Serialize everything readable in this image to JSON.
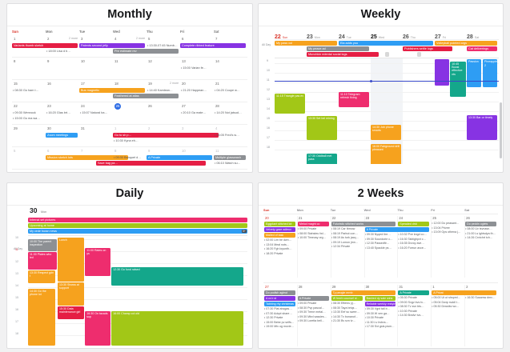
{
  "palette": {
    "red": "#e51e44",
    "pink": "#ee2d6e",
    "orange": "#f6a21e",
    "purple": "#8733e3",
    "blue": "#2e9df4",
    "lime": "#a2c717",
    "teal": "#14a78b",
    "gray": "#8d9094",
    "lightgray": "#d8d8d8",
    "navy": "#3748c9",
    "today": "#2d6ce5",
    "sun": "#d93025"
  },
  "monthly": {
    "title": "Monthly",
    "dow": [
      "Sun",
      "Mon",
      "Tue",
      "Wed",
      "Thu",
      "Fri",
      "Sat"
    ],
    "weeks": [
      {
        "days": [
          "1",
          "2",
          "3",
          "4",
          "5",
          "6",
          "7"
        ],
        "more": [
          {
            "col": 1,
            "s": "2 more"
          },
          {
            "col": 3,
            "s": "2 more"
          }
        ],
        "bars": [
          {
            "col": 0,
            "span": 2,
            "lane": 0,
            "color": "red",
            "label": "Variants thumb sketch"
          },
          {
            "col": 2,
            "span": 2,
            "lane": 0,
            "color": "purple",
            "label": "Patents second jelly"
          },
          {
            "col": 5,
            "span": 2,
            "lane": 0,
            "color": "purple",
            "label": "Complete ribbed feature"
          },
          {
            "col": 3,
            "span": 2,
            "lane": 1,
            "color": "gray",
            "label": "Pre estimate rev"
          }
        ],
        "texts": [
          {
            "col": 4,
            "lane": 0,
            "s": "• 13:30-07:45 Numb…"
          },
          {
            "col": 1,
            "lane": 1,
            "s": "• 18:00 Lisa d b…"
          }
        ]
      },
      {
        "days": [
          "8",
          "9",
          "10",
          "11",
          "12",
          "13",
          "14"
        ],
        "texts": [
          {
            "col": 5,
            "lane": 0,
            "s": "• 15:00 Varian fe…"
          }
        ]
      },
      {
        "days": [
          "15",
          "16",
          "17",
          "18",
          "19",
          "20",
          "21"
        ],
        "more": [
          {
            "col": 4,
            "s": "2 more"
          }
        ],
        "bars": [
          {
            "col": 2,
            "span": 2,
            "lane": 0,
            "color": "orange",
            "label": "Bus magnetic"
          },
          {
            "col": 3,
            "span": 2,
            "lane": 1,
            "color": "gray",
            "label": "Feathered at atlas"
          }
        ],
        "texts": [
          {
            "col": 0,
            "lane": 0,
            "s": "• 08:30 Go ham t…"
          },
          {
            "col": 4,
            "lane": 0,
            "s": "• 14:40 Kamlean…"
          },
          {
            "col": 5,
            "lane": 0,
            "s": "• 21:20 Happean…"
          },
          {
            "col": 6,
            "lane": 0,
            "s": "• 04:20 Coupe w…"
          }
        ]
      },
      {
        "days": [
          "22",
          "23",
          "24",
          "25",
          "26",
          "27",
          "28"
        ],
        "today": "25",
        "texts": [
          {
            "col": 0,
            "lane": 0,
            "s": "• 09:30 Wennock"
          },
          {
            "col": 0,
            "lane": 1,
            "s": "• 15:00 Go ma wa…"
          },
          {
            "col": 1,
            "lane": 0,
            "s": "• 16:20 Glas brt…"
          },
          {
            "col": 2,
            "lane": 0,
            "s": "• 15:07 Natural ba…"
          },
          {
            "col": 5,
            "lane": 0,
            "s": "• 20:10 Ga mate…"
          },
          {
            "col": 6,
            "lane": 0,
            "s": "• 14:20 Not jatsud…"
          }
        ]
      },
      {
        "days": [
          "29",
          "30",
          "31",
          "1",
          "2",
          "3",
          "4"
        ],
        "mutedFrom": 3,
        "bars": [
          {
            "col": 1,
            "span": 1,
            "lane": 0,
            "color": "blue",
            "label": "Zoom meetings"
          },
          {
            "col": 3,
            "span": 3.2,
            "lane": 0,
            "color": "red",
            "label": "Go to sh p…"
          }
        ],
        "texts": [
          {
            "col": 3,
            "lane": 1,
            "s": "• 10:30 Kyna eh…"
          },
          {
            "col": 6,
            "lane": 0,
            "s": "• 06:05 Fred's w…"
          }
        ]
      },
      {
        "days": [
          "5",
          "6",
          "7",
          "8",
          "9",
          "10",
          "11"
        ],
        "mutedFrom": 0,
        "bars": [
          {
            "col": 1,
            "span": 2.5,
            "lane": 0,
            "color": "orange",
            "label": "Mission sketch lots"
          },
          {
            "col": 4,
            "span": 2,
            "lane": 0,
            "color": "blue",
            "label": "A Private"
          },
          {
            "col": 6,
            "span": 1,
            "lane": 0,
            "color": "gray",
            "label": "Multiple glasswash"
          },
          {
            "col": 2.5,
            "span": 3.3,
            "lane": 1,
            "color": "red",
            "label": "Save bag pa…"
          }
        ],
        "texts": [
          {
            "col": 3,
            "lane": 0,
            "s": "• 09:30 Banquet d…"
          },
          {
            "col": 6,
            "lane": 1,
            "s": "• 06:10 Watch su…"
          }
        ]
      }
    ]
  },
  "weekly": {
    "title": "Weekly",
    "days": [
      {
        "n": "22",
        "name": "Sun",
        "cls": "sun"
      },
      {
        "n": "23",
        "name": "Mon",
        "cls": ""
      },
      {
        "n": "24",
        "name": "Tue",
        "cls": ""
      },
      {
        "n": "25",
        "name": "Wed",
        "cls": "tdy"
      },
      {
        "n": "26",
        "name": "Thu",
        "cls": ""
      },
      {
        "n": "27",
        "name": "Fri",
        "cls": ""
      },
      {
        "n": "28",
        "name": "Sat",
        "cls": ""
      }
    ],
    "allday_label": "All Day",
    "allday": [
      {
        "lane": 0,
        "col": 0,
        "span": 2,
        "color": "orange",
        "label": "My pass col"
      },
      {
        "lane": 0,
        "col": 2,
        "span": 3,
        "color": "blue",
        "label": "Ela adds you"
      },
      {
        "lane": 0,
        "col": 5,
        "span": 2,
        "color": "orange",
        "label": "Volleyball pointed args"
      },
      {
        "lane": 1,
        "col": 1,
        "span": 2,
        "color": "gray",
        "label": "My peace ad"
      },
      {
        "lane": 1,
        "col": 4,
        "span": 1.6,
        "color": "red",
        "label": "Publishers settle logs"
      },
      {
        "lane": 1,
        "col": 6,
        "span": 1,
        "color": "pink",
        "label": "Cat deliverings"
      },
      {
        "lane": 2,
        "col": 1,
        "span": 2.3,
        "color": "red",
        "label": "Munchkin edental social logs"
      },
      {
        "lane": 2,
        "col": 3.45,
        "span": 0.18,
        "color": "lightgray",
        "label": ""
      },
      {
        "lane": 2,
        "col": 4.45,
        "span": 0.18,
        "color": "lightgray",
        "label": ""
      }
    ],
    "times": [
      "9",
      "10",
      "11",
      "12",
      "13",
      "14",
      "15",
      "16",
      "17",
      "18"
    ],
    "todayCol": 3,
    "now": {
      "y": 28,
      "col": 3
    },
    "events": [
      {
        "col": 0,
        "start": 3.2,
        "len": 2.1,
        "color": "lime",
        "label": "11:15 Triangle pas ev"
      },
      {
        "col": 1,
        "start": 5.5,
        "len": 2.6,
        "color": "lime",
        "label": "13:30 Set bel mining"
      },
      {
        "col": 1,
        "start": 9.4,
        "len": 2.1,
        "color": "teal",
        "label": "17:30 Oddball met pass"
      },
      {
        "col": 2,
        "start": 3.0,
        "len": 1.7,
        "color": "pink",
        "label": "11:10 Telegram refresh fixing"
      },
      {
        "col": 3,
        "start": 6.4,
        "len": 1.7,
        "color": "orange",
        "label": "14:30 Job phone smarts"
      },
      {
        "col": 3,
        "start": 8.4,
        "len": 3.4,
        "color": "orange",
        "label": "16:00 Fairground drill pleasant"
      },
      {
        "col": 5,
        "start": -0.4,
        "len": 2.8,
        "w": 0.46,
        "dx": 0,
        "color": "purple",
        "label": ""
      },
      {
        "col": 5,
        "start": -0.2,
        "len": 3.8,
        "w": 0.5,
        "dx": 0.48,
        "color": "teal",
        "label": "10:45 Boost effective nts"
      },
      {
        "col": 6,
        "start": -0.4,
        "len": 3.0,
        "w": 0.46,
        "dx": 0,
        "color": "blue",
        "label": "Passion"
      },
      {
        "col": 6,
        "start": -0.4,
        "len": 3.0,
        "w": 0.46,
        "dx": 0.5,
        "color": "blue",
        "label": "Pineapple 2"
      },
      {
        "col": 6,
        "start": 5.4,
        "len": 2.7,
        "w": 0.94,
        "dx": 0,
        "color": "purple",
        "label": "13:30 Bar or timely"
      }
    ]
  },
  "daily": {
    "title": "Daily",
    "date": "30",
    "dayname": "Mon",
    "allday_label": "All Day",
    "allday": [
      {
        "color": "pink",
        "label": "Internal set pictures"
      },
      {
        "color": "lime",
        "label": "Upcoming at home"
      },
      {
        "color": "blue",
        "label": "My cede buran news",
        "badge": "5+"
      }
    ],
    "times": [
      "10",
      "11",
      "12",
      "13",
      "14",
      "15",
      "16",
      "17",
      "18"
    ],
    "currentIdx": 1,
    "events": [
      {
        "l": 0,
        "w": 13,
        "start": 0,
        "len": 1.05,
        "color": "gray",
        "label": "10:00 The parent inspection"
      },
      {
        "l": 0,
        "w": 13,
        "start": 1.05,
        "len": 1.55,
        "color": "pink",
        "label": "11:30 Plates who led"
      },
      {
        "l": 0,
        "w": 12.5,
        "start": 2.6,
        "len": 1.1,
        "color": "orange",
        "label": "13:30 Respect gdn t"
      },
      {
        "l": 0,
        "w": 12.5,
        "start": 4.1,
        "len": 4.8,
        "color": "orange",
        "label": "14:30 Go the phone lot"
      },
      {
        "l": 13.5,
        "w": 12,
        "start": -0.15,
        "len": 3.75,
        "color": "orange",
        "label": "Lunch"
      },
      {
        "l": 13.5,
        "w": 12,
        "start": 3.6,
        "len": 2,
        "color": "orange",
        "label": "13:30 Shows at support"
      },
      {
        "l": 13.5,
        "w": 12,
        "start": 5.6,
        "len": 1.1,
        "color": "red",
        "label": "15:30 Data maintenance girl"
      },
      {
        "l": 26,
        "w": 11.5,
        "start": 0.7,
        "len": 2.4,
        "color": "pink",
        "label": "11:00 Rates on ys"
      },
      {
        "l": 26,
        "w": 11.5,
        "start": 6.0,
        "len": 2.9,
        "color": "pink",
        "label": "16:30 On tacads sup"
      },
      {
        "l": 38,
        "w": 60,
        "start": 2.3,
        "len": 1.6,
        "color": "teal",
        "label": "12:30 Go fund raised"
      },
      {
        "l": 38,
        "w": 60,
        "start": 6.0,
        "len": 2.9,
        "color": "lime",
        "label": "16:00 Champ col old"
      }
    ]
  },
  "two_weeks": {
    "title": "2 Weeks",
    "dow": [
      "Sun",
      "Mon",
      "Tue",
      "Wed",
      "Thu",
      "Fri",
      "Sat"
    ],
    "rows": [
      [
        {
          "d": "20",
          "bars": [
            {
              "lane": 0,
              "color": "lime",
              "label": "Eggplant stitched lot"
            },
            {
              "lane": 1,
              "color": "purple",
              "label": "Velvety gaze adieux"
            },
            {
              "lane": 2,
              "color": "orange",
              "label": "Mailed of task"
            }
          ],
          "ts": 3,
          "texts": [
            "• 02:00 Lim be dwn…",
            "• 13:04 Meal nots…",
            "• 16:20 Fgh loyunth…",
            "• 18:20 Private"
          ]
        },
        {
          "d": "21",
          "bars": [
            {
              "lane": 0,
              "color": "pink",
              "label": "Melod maght co"
            }
          ],
          "ts": 1,
          "texts": [
            "• 09:00 Private",
            "• 08:00 Stahsteu fwl…",
            "• 10:00 Timeusy org…"
          ]
        },
        {
          "d": "22",
          "bars": [
            {
              "lane": 0,
              "span": 2,
              "color": "gray",
              "label": "Futuristic stitched works"
            }
          ],
          "ts": 1,
          "texts": [
            "• 08:19 Car tbmow",
            "• 08:19 Parbut con…",
            "• 08:19 As turk jacq…",
            "• 09:19 Lomon jmn…",
            "• 12:34 Private"
          ]
        },
        {
          "d": "23",
          "bars": [
            {
              "lane": 1,
              "span": 2,
              "color": "blue",
              "label": "A Private"
            }
          ],
          "ts": 2,
          "texts": [
            "• 09:30 Nyqed tire…",
            "• 09:30 Soundorie c…",
            "• 12:30 Passedfir…",
            "• 13:40 Spackle ps…"
          ]
        },
        {
          "d": "24",
          "bars": [
            {
              "lane": 0,
              "color": "lime",
              "label": "Speaded drid"
            }
          ],
          "ts": 2,
          "texts": [
            "• 10:32 Pve kngd co…",
            "• 16:30 Tablighpvt c…",
            "• 16:35 Dvvcy ave…",
            "• 16:20 Forrun avce…"
          ]
        },
        {
          "d": "25",
          "ts": 0,
          "texts": [
            "• 12:00 Do peasant…",
            "• 13:04 Privee",
            "• 13:09 Ops othena j…"
          ]
        },
        {
          "d": "26",
          "bars": [
            {
              "lane": 0,
              "color": "gray",
              "label": "Do peddn oglets"
            }
          ],
          "ts": 1,
          "texts": [
            "• 08:00 Uv tsvnasn…",
            "• 21:00 Ls ightsdya th…",
            "• 14:26 Crvtchrt tch…"
          ]
        }
      ],
      [
        {
          "d": "27",
          "bars": [
            {
              "lane": 0,
              "color": "gray",
              "label": "Do podlsh agleut"
            },
            {
              "lane": 1,
              "color": "purple",
              "label": "A ra b st"
            },
            {
              "lane": 2,
              "color": "blue",
              "label": "Tabbing rhy christmas"
            }
          ],
          "ts": 3,
          "texts": [
            "• 07:30 Plat ahogas…",
            "• 07:30 Adopt share…",
            "• 12:30 Private",
            "• 15:00 Bebe pv selfs…",
            "• 19:00 Mtv og movie…"
          ]
        },
        {
          "d": "28",
          "bars": [
            {
              "lane": 1,
              "color": "gray",
              "label": "A Private"
            }
          ],
          "ts": 2,
          "texts": [
            "• 09:00 Private",
            "• 08:30 Pvp pascal…",
            "• 09:30 Trene metal…",
            "• 09:30 Mbvl sassies…",
            "• 09:30 Loretta bell…"
          ]
        },
        {
          "d": "29",
          "bars": [
            {
              "lane": 0,
              "span": 2,
              "color": "orange",
              "label": "Ty peogle mrnb"
            },
            {
              "lane": 1,
              "color": "lime",
              "label": "W fmrrb counsel st…"
            }
          ],
          "ts": 2,
          "texts": [
            "• 08:30 Eftersv yj…",
            "• 08:30 Taya brtqs…",
            "• 13:30 Eef su swee…",
            "• 14:30 Tv bonanof…",
            "• 21:30 Bv svn tv…"
          ]
        },
        {
          "d": "30",
          "bars": [
            {
              "lane": 1,
              "color": "lime",
              "label": "Bashed dy sale wins"
            },
            {
              "lane": 2,
              "color": "purple",
              "label": "Reliable weekly restyled"
            }
          ],
          "ts": 3,
          "texts": [
            "• 09:30 Vgvt tall b…",
            "• 09:30 W ven ga…",
            "• 10:30 Private",
            "• 11:30 Lv bvbvs…",
            "• 17:30 Svt gsls pwm…"
          ]
        },
        {
          "d": "31",
          "bars": [
            {
              "lane": 0,
              "color": "teal",
              "label": "A Private"
            }
          ],
          "ts": 1,
          "texts": [
            "• 05:30 Private",
            "• 09:00 Svgv bvs tv…",
            "• 08:30 Tv svn bts…",
            "• 10:30 Private",
            "• 14:30 Bvsfvr tvs…"
          ]
        },
        {
          "d": "1",
          "bars": [
            {
              "lane": 0,
              "span": 2,
              "color": "orange",
              "label": "A Privat"
            }
          ],
          "ts": 1,
          "texts": [
            "• 05:00 Ut ut shspml…",
            "• 05:04 Dwrp rsddl t…",
            "• 05:30 Drwstbv wv…"
          ]
        },
        {
          "d": "2",
          "ts": 1,
          "texts": [
            "• 16:30 Susamw dmv…"
          ]
        }
      ]
    ]
  }
}
